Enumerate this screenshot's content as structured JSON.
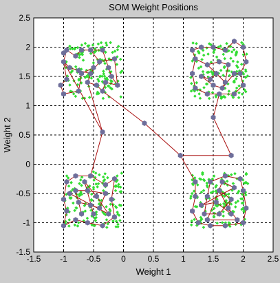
{
  "chart_data": {
    "type": "scatter",
    "title": "SOM Weight Positions",
    "xlabel": "Weight 1",
    "ylabel": "Weight 2",
    "xlim": [
      -1.5,
      2.5
    ],
    "ylim": [
      -1.5,
      2.5
    ],
    "xticks": [
      "-1.5",
      "-1",
      "-0.5",
      "0",
      "0.5",
      "1",
      "1.5",
      "2",
      "2.5"
    ],
    "yticks": [
      "-1.5",
      "-1",
      "-0.5",
      "0",
      "0.5",
      "1",
      "1.5",
      "2",
      "2.5"
    ],
    "grid": true,
    "clusters": [
      {
        "center": [
          -0.5,
          1.6
        ],
        "halfwidth": 0.48
      },
      {
        "center": [
          1.6,
          1.6
        ],
        "halfwidth": 0.48
      },
      {
        "center": [
          -0.5,
          -0.6
        ],
        "halfwidth": 0.48
      },
      {
        "center": [
          1.6,
          -0.6
        ],
        "halfwidth": 0.48
      }
    ],
    "input_points_per_cluster": 140,
    "colors": {
      "inputs": "#33dd33",
      "neurons": "#6e6e9a",
      "links": "#aa1111"
    },
    "weights": [
      [
        -1.05,
        1.35
      ],
      [
        -0.95,
        1.45
      ],
      [
        -1.0,
        1.75
      ],
      [
        -0.95,
        1.95
      ],
      [
        -0.8,
        1.85
      ],
      [
        -0.7,
        1.95
      ],
      [
        -0.55,
        1.95
      ],
      [
        -0.35,
        1.95
      ],
      [
        -0.25,
        1.65
      ],
      [
        -0.2,
        1.5
      ],
      [
        -1.0,
        1.2
      ],
      [
        -0.75,
        1.25
      ],
      [
        -0.7,
        1.55
      ],
      [
        -0.5,
        1.65
      ],
      [
        -0.6,
        1.4
      ],
      [
        -0.45,
        1.35
      ],
      [
        -0.35,
        1.25
      ],
      [
        -0.3,
        1.4
      ],
      [
        -0.1,
        1.35
      ],
      [
        -0.15,
        1.8
      ],
      [
        -0.75,
        1.6
      ],
      [
        -0.55,
        1.55
      ],
      [
        -0.4,
        1.75
      ],
      [
        -0.9,
        1.65
      ],
      [
        -1.0,
        1.9
      ],
      [
        0.35,
        0.7
      ],
      [
        0.95,
        0.15
      ],
      [
        1.8,
        0.15
      ],
      [
        1.5,
        0.8
      ],
      [
        -0.35,
        0.55
      ],
      [
        1.15,
        1.95
      ],
      [
        1.3,
        2.0
      ],
      [
        1.5,
        2.0
      ],
      [
        1.7,
        1.95
      ],
      [
        1.85,
        2.1
      ],
      [
        2.0,
        2.0
      ],
      [
        2.05,
        1.75
      ],
      [
        1.95,
        1.55
      ],
      [
        2.0,
        1.35
      ],
      [
        1.85,
        1.2
      ],
      [
        1.6,
        1.2
      ],
      [
        1.4,
        1.2
      ],
      [
        1.2,
        1.3
      ],
      [
        1.15,
        1.55
      ],
      [
        1.2,
        1.8
      ],
      [
        1.4,
        1.7
      ],
      [
        1.55,
        1.55
      ],
      [
        1.7,
        1.4
      ],
      [
        1.75,
        1.7
      ],
      [
        1.45,
        1.45
      ],
      [
        1.3,
        1.5
      ],
      [
        1.6,
        1.75
      ],
      [
        1.85,
        1.55
      ],
      [
        1.65,
        1.3
      ],
      [
        1.5,
        1.35
      ],
      [
        -1.0,
        -1.05
      ],
      [
        -0.95,
        -0.8
      ],
      [
        -1.0,
        -0.6
      ],
      [
        -0.95,
        -0.3
      ],
      [
        -0.8,
        -0.2
      ],
      [
        -0.55,
        -0.2
      ],
      [
        -0.3,
        -0.35
      ],
      [
        -0.15,
        -0.25
      ],
      [
        -0.2,
        -0.6
      ],
      [
        -0.15,
        -0.9
      ],
      [
        -0.35,
        -1.05
      ],
      [
        -0.6,
        -1.0
      ],
      [
        -0.8,
        -0.95
      ],
      [
        -0.75,
        -0.65
      ],
      [
        -0.55,
        -0.7
      ],
      [
        -0.4,
        -0.75
      ],
      [
        -0.3,
        -0.5
      ],
      [
        -0.6,
        -0.45
      ],
      [
        -0.8,
        -0.45
      ],
      [
        -0.5,
        -0.85
      ],
      [
        -0.65,
        -0.3
      ],
      [
        -0.45,
        -0.55
      ],
      [
        -0.25,
        -0.85
      ],
      [
        -0.9,
        -0.5
      ],
      [
        -0.7,
        -0.85
      ],
      [
        1.2,
        -0.3
      ],
      [
        1.2,
        -0.55
      ],
      [
        1.15,
        -0.8
      ],
      [
        1.25,
        -1.0
      ],
      [
        1.45,
        -1.05
      ],
      [
        1.7,
        -1.05
      ],
      [
        2.0,
        -1.0
      ],
      [
        2.05,
        -0.75
      ],
      [
        2.0,
        -0.45
      ],
      [
        1.95,
        -0.25
      ],
      [
        1.7,
        -0.2
      ],
      [
        1.45,
        -0.3
      ],
      [
        1.4,
        -0.55
      ],
      [
        1.35,
        -0.85
      ],
      [
        1.6,
        -0.85
      ],
      [
        1.8,
        -0.6
      ],
      [
        1.6,
        -0.45
      ],
      [
        1.8,
        -0.85
      ],
      [
        1.55,
        -0.65
      ],
      [
        1.3,
        -0.7
      ],
      [
        1.85,
        -0.4
      ],
      [
        1.65,
        -0.3
      ],
      [
        1.4,
        -0.95
      ],
      [
        1.9,
        -0.95
      ],
      [
        1.75,
        -0.75
      ]
    ],
    "links": [
      [
        0,
        1
      ],
      [
        1,
        2
      ],
      [
        2,
        3
      ],
      [
        3,
        4
      ],
      [
        4,
        5
      ],
      [
        5,
        6
      ],
      [
        6,
        7
      ],
      [
        7,
        8
      ],
      [
        8,
        9
      ],
      [
        0,
        10
      ],
      [
        10,
        11
      ],
      [
        11,
        12
      ],
      [
        12,
        13
      ],
      [
        13,
        14
      ],
      [
        14,
        15
      ],
      [
        15,
        16
      ],
      [
        16,
        17
      ],
      [
        17,
        18
      ],
      [
        18,
        19
      ],
      [
        2,
        23
      ],
      [
        23,
        20
      ],
      [
        20,
        21
      ],
      [
        21,
        22
      ],
      [
        22,
        19
      ],
      [
        24,
        3
      ],
      [
        12,
        20
      ],
      [
        9,
        18
      ],
      [
        6,
        22
      ],
      [
        14,
        29
      ],
      [
        29,
        2
      ],
      [
        16,
        25
      ],
      [
        25,
        26
      ],
      [
        26,
        27
      ],
      [
        27,
        28
      ],
      [
        28,
        40
      ],
      [
        29,
        60
      ],
      [
        26,
        80
      ],
      [
        30,
        31
      ],
      [
        31,
        32
      ],
      [
        32,
        33
      ],
      [
        33,
        34
      ],
      [
        34,
        35
      ],
      [
        35,
        36
      ],
      [
        36,
        37
      ],
      [
        37,
        38
      ],
      [
        38,
        39
      ],
      [
        39,
        40
      ],
      [
        40,
        41
      ],
      [
        41,
        42
      ],
      [
        42,
        43
      ],
      [
        43,
        44
      ],
      [
        44,
        30
      ],
      [
        45,
        46
      ],
      [
        46,
        47
      ],
      [
        47,
        48
      ],
      [
        48,
        51
      ],
      [
        51,
        45
      ],
      [
        49,
        50
      ],
      [
        50,
        54
      ],
      [
        54,
        53
      ],
      [
        53,
        52
      ],
      [
        44,
        45
      ],
      [
        46,
        49
      ],
      [
        47,
        53
      ],
      [
        37,
        52
      ],
      [
        55,
        56
      ],
      [
        56,
        57
      ],
      [
        57,
        58
      ],
      [
        58,
        59
      ],
      [
        59,
        60
      ],
      [
        60,
        61
      ],
      [
        61,
        62
      ],
      [
        62,
        63
      ],
      [
        63,
        64
      ],
      [
        64,
        65
      ],
      [
        65,
        66
      ],
      [
        66,
        67
      ],
      [
        67,
        55
      ],
      [
        68,
        69
      ],
      [
        69,
        70
      ],
      [
        70,
        71
      ],
      [
        71,
        72
      ],
      [
        72,
        73
      ],
      [
        73,
        68
      ],
      [
        74,
        75
      ],
      [
        75,
        76
      ],
      [
        76,
        77
      ],
      [
        77,
        78
      ],
      [
        79,
        68
      ],
      [
        80,
        81
      ],
      [
        81,
        82
      ],
      [
        82,
        83
      ],
      [
        83,
        84
      ],
      [
        84,
        85
      ],
      [
        85,
        86
      ],
      [
        86,
        87
      ],
      [
        87,
        88
      ],
      [
        88,
        89
      ],
      [
        89,
        90
      ],
      [
        90,
        91
      ],
      [
        91,
        92
      ],
      [
        92,
        93
      ],
      [
        93,
        94
      ],
      [
        94,
        95
      ],
      [
        95,
        96
      ],
      [
        96,
        97
      ],
      [
        97,
        98
      ],
      [
        98,
        99
      ],
      [
        99,
        100
      ],
      [
        100,
        101
      ],
      [
        101,
        102
      ],
      [
        102,
        103
      ],
      [
        103,
        104
      ],
      [
        104,
        95
      ]
    ]
  }
}
